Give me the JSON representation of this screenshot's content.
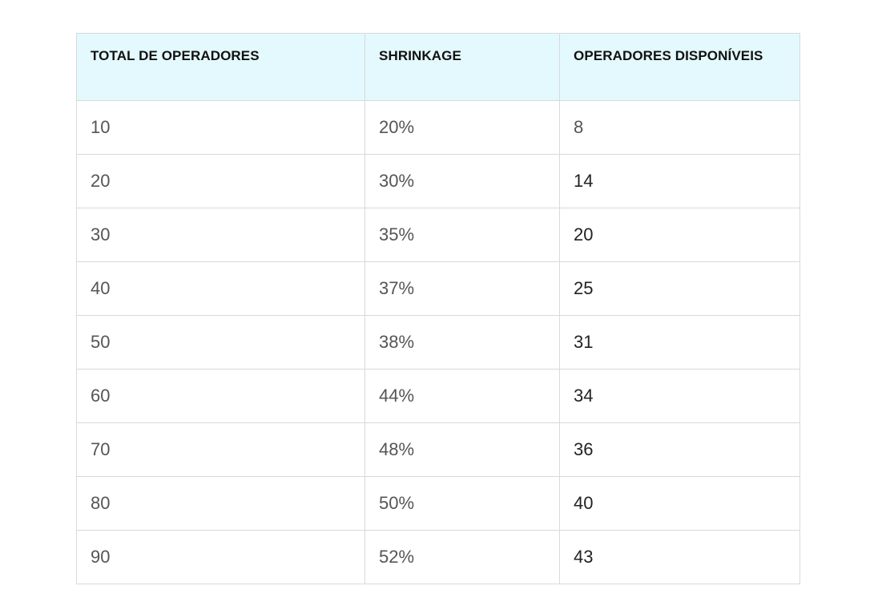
{
  "table": {
    "headers": [
      "TOTAL DE OPERADORES",
      "SHRINKAGE",
      "OPERADORES DISPONÍVEIS"
    ],
    "rows": [
      [
        "10",
        "20%",
        "8"
      ],
      [
        "20",
        "30%",
        "14"
      ],
      [
        "30",
        "35%",
        "20"
      ],
      [
        "40",
        "37%",
        "25"
      ],
      [
        "50",
        "38%",
        "31"
      ],
      [
        "60",
        "44%",
        "34"
      ],
      [
        "70",
        "48%",
        "36"
      ],
      [
        "80",
        "50%",
        "40"
      ],
      [
        "90",
        "52%",
        "43"
      ]
    ]
  },
  "colors": {
    "header_background": "#e3f9fd",
    "border": "#d9d9d9",
    "header_text": "#111111",
    "cell_text": "#555555"
  }
}
